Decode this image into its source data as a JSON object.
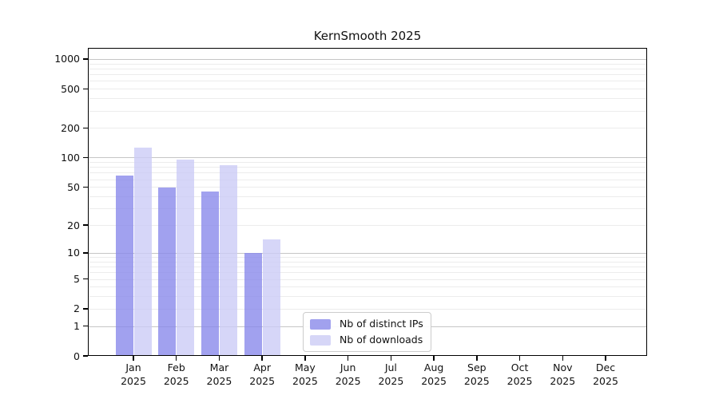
{
  "chart_data": {
    "type": "bar",
    "title": "KernSmooth 2025",
    "categories": [
      "Jan",
      "Feb",
      "Mar",
      "Apr",
      "May",
      "Jun",
      "Jul",
      "Aug",
      "Sep",
      "Oct",
      "Nov",
      "Dec"
    ],
    "category_year": "2025",
    "series": [
      {
        "name": "Nb of distinct IPs",
        "color": "rgba(134,134,235,0.78)",
        "legend_color": "#a1a1ee",
        "values": [
          66,
          49,
          45,
          10,
          0,
          0,
          0,
          0,
          0,
          0,
          0,
          0
        ]
      },
      {
        "name": "Nb of downloads",
        "color": "rgba(203,203,246,0.78)",
        "legend_color": "#d6d6f7",
        "values": [
          126,
          96,
          83,
          14,
          0,
          0,
          0,
          0,
          0,
          0,
          0,
          0
        ]
      }
    ],
    "y_ticks": [
      0,
      1,
      2,
      5,
      10,
      20,
      50,
      100,
      200,
      500,
      1000
    ],
    "y_scale": "log1p",
    "ylim": [
      0,
      1300
    ],
    "xlabel": "",
    "ylabel": "",
    "grid": {
      "major_color": "#c6c6c6",
      "minor_color": "#ececec",
      "minor_lines": true
    },
    "legend_position": "lower center"
  }
}
